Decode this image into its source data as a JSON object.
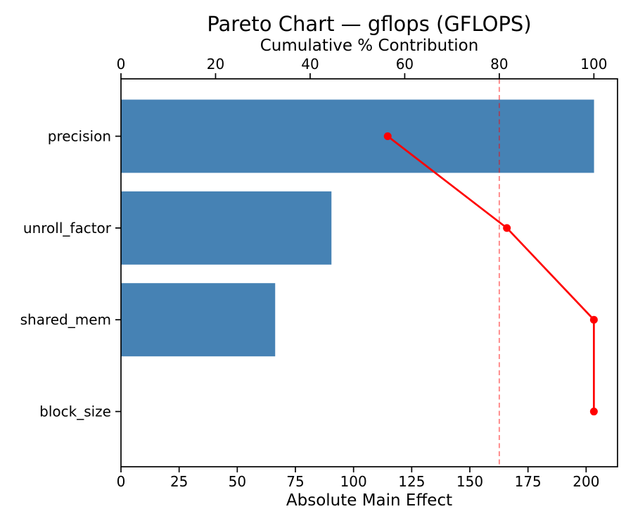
{
  "chart_data": {
    "type": "pareto",
    "title": "Pareto Chart — gflops (GFLOPS)",
    "xlabel": "Absolute Main Effect",
    "top_axis": {
      "label": "Cumulative % Contribution",
      "ticks": [
        0,
        20,
        40,
        60,
        80,
        100
      ],
      "lim": [
        0,
        105
      ]
    },
    "bottom_axis": {
      "ticks": [
        0,
        25,
        50,
        75,
        100,
        125,
        150,
        175,
        200
      ],
      "lim": [
        0,
        213.5
      ]
    },
    "categories": [
      "precision",
      "unroll_factor",
      "shared_mem",
      "block_size"
    ],
    "series": [
      {
        "name": "absolute_main_effect",
        "type": "bar",
        "values": [
          203.4,
          90.5,
          66.3,
          0
        ]
      },
      {
        "name": "cumulative_pct",
        "type": "line",
        "values": [
          56.4,
          81.6,
          100.0,
          100.0
        ]
      }
    ],
    "threshold_pct": 80,
    "legend": "none",
    "grid": false,
    "colors": {
      "bar": "#4682b4",
      "line": "#ff0000",
      "threshold_line": "rgba(255,0,0,0.45)",
      "text": "#000000",
      "spine": "#000000"
    }
  }
}
